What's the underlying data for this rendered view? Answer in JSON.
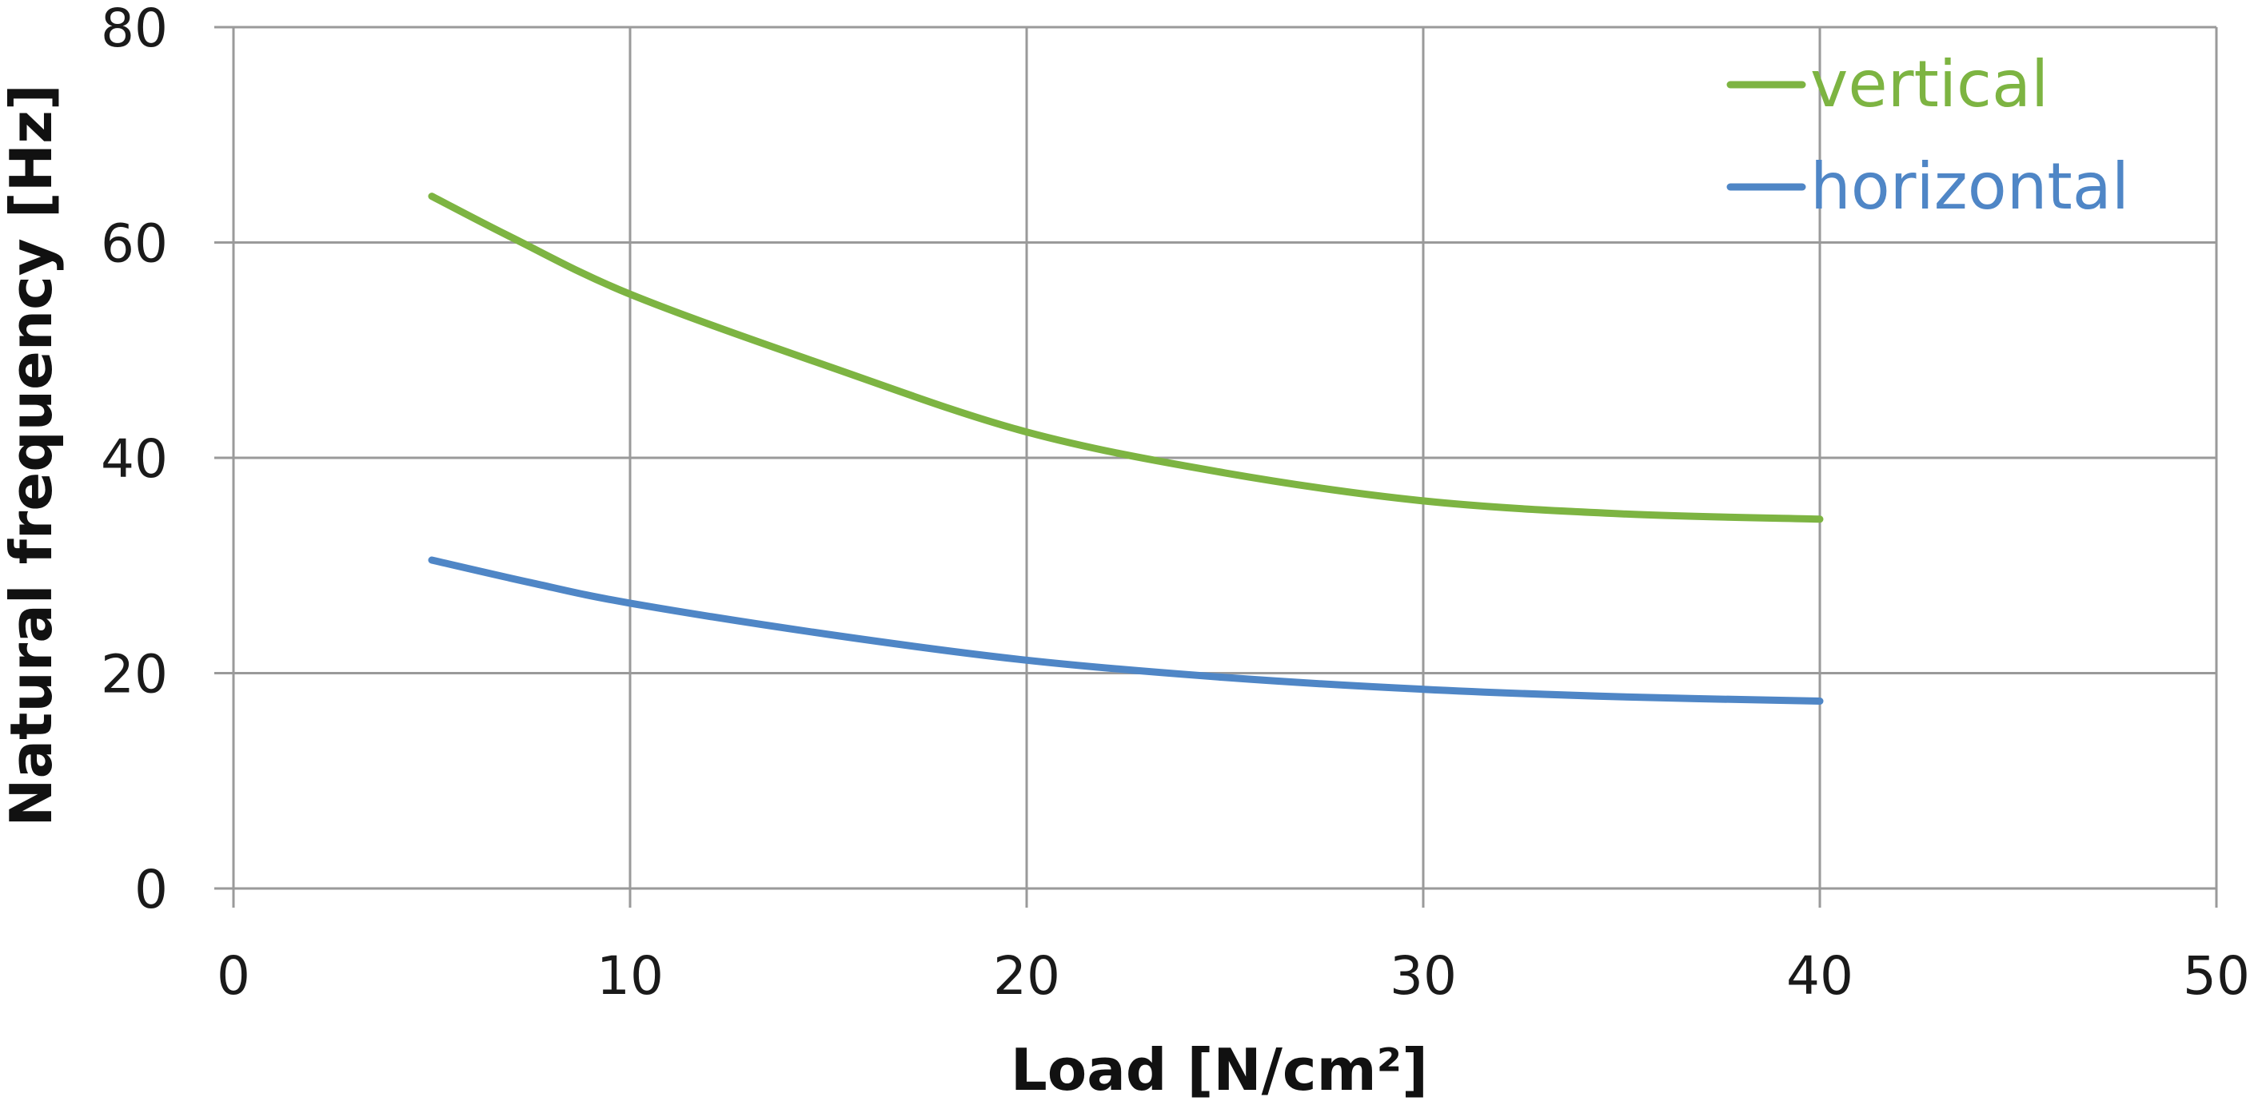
{
  "chart_data": {
    "type": "line",
    "title": "",
    "xlabel": "Load [N/cm²]",
    "ylabel": "Natural frequency  [Hz]",
    "xlim": [
      0,
      50
    ],
    "ylim": [
      0,
      80
    ],
    "x_ticks": [
      0,
      10,
      20,
      30,
      40,
      50
    ],
    "y_ticks": [
      0,
      20,
      40,
      60,
      80
    ],
    "grid": true,
    "legend_position": "top-right",
    "series": [
      {
        "name": "vertical",
        "color": "#7db442",
        "x": [
          5,
          7,
          10,
          15,
          20,
          25,
          30,
          35,
          40
        ],
        "y": [
          64.3,
          60.5,
          55.2,
          48.5,
          42.4,
          38.6,
          36.0,
          34.8,
          34.3
        ]
      },
      {
        "name": "horizontal",
        "color": "#4f86c6",
        "x": [
          5,
          7.5,
          10,
          15,
          20,
          25,
          30,
          35,
          40
        ],
        "y": [
          30.5,
          28.4,
          26.5,
          23.6,
          21.2,
          19.6,
          18.5,
          17.8,
          17.4
        ]
      }
    ]
  }
}
